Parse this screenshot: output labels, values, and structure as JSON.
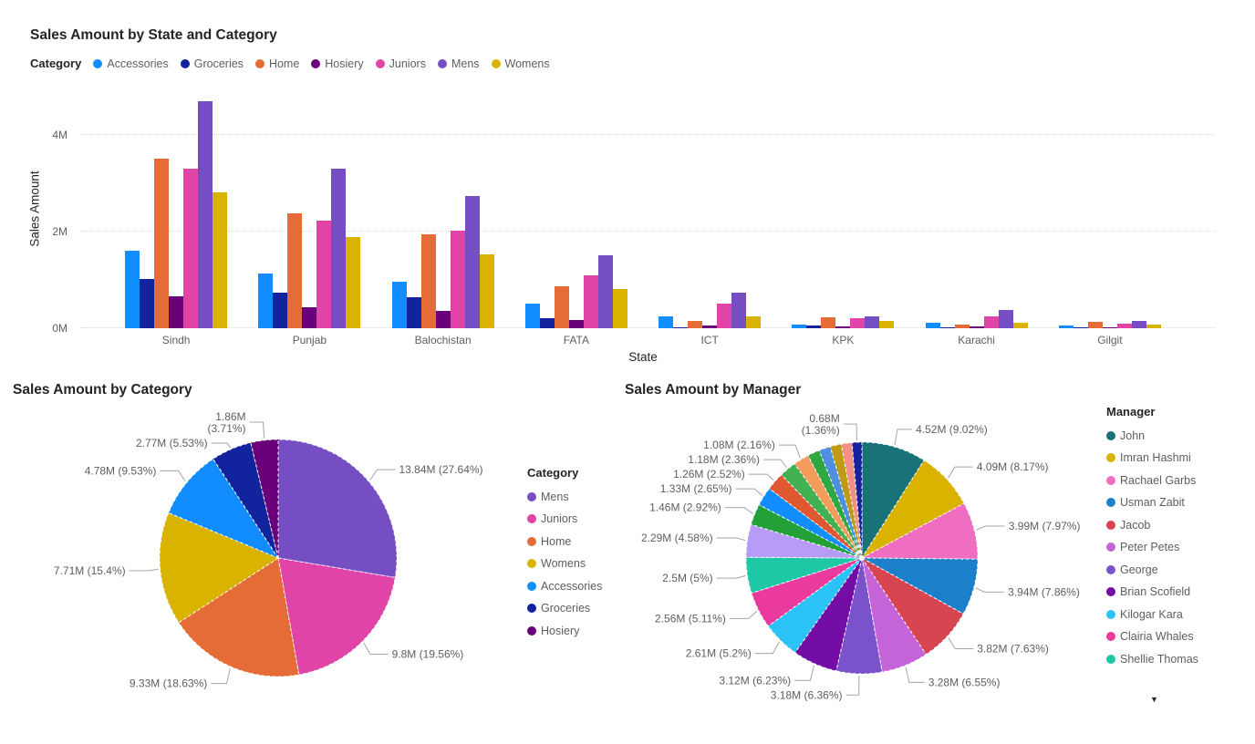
{
  "icons": {
    "legend_scroll_down": "▼"
  },
  "chart_data": [
    {
      "type": "bar",
      "title": "Sales Amount by State and Category",
      "legend_title": "Category",
      "xlabel": "State",
      "ylabel": "Sales Amount",
      "values_unit": "M",
      "ylim": [
        0,
        4.9
      ],
      "grid": "dotted-horizontal",
      "legend_position": "top",
      "yticks": [
        {
          "label": "0M",
          "value": 0
        },
        {
          "label": "2M",
          "value": 2
        },
        {
          "label": "4M",
          "value": 4
        }
      ],
      "categories": [
        "Sindh",
        "Punjab",
        "Balochistan",
        "FATA",
        "ICT",
        "KPK",
        "Karachi",
        "Gilgit"
      ],
      "series": [
        {
          "name": "Accessories",
          "color": "#118DFF",
          "values": [
            1.61,
            1.13,
            0.97,
            0.5,
            0.25,
            0.08,
            0.11,
            0.06
          ]
        },
        {
          "name": "Groceries",
          "color": "#12239E",
          "values": [
            1.01,
            0.74,
            0.64,
            0.21,
            0.02,
            0.05,
            0.02,
            0.02
          ]
        },
        {
          "name": "Home",
          "color": "#E66C37",
          "values": [
            3.51,
            2.37,
            1.94,
            0.86,
            0.15,
            0.22,
            0.07,
            0.13
          ]
        },
        {
          "name": "Hosiery",
          "color": "#6B007B",
          "values": [
            0.66,
            0.43,
            0.35,
            0.17,
            0.06,
            0.03,
            0.03,
            0.02
          ]
        },
        {
          "name": "Juniors",
          "color": "#E044A7",
          "values": [
            3.29,
            2.23,
            2.02,
            1.09,
            0.51,
            0.2,
            0.24,
            0.1
          ]
        },
        {
          "name": "Mens",
          "color": "#744EC2",
          "values": [
            4.69,
            3.29,
            2.74,
            1.51,
            0.73,
            0.25,
            0.37,
            0.15
          ]
        },
        {
          "name": "Womens",
          "color": "#D9B300",
          "values": [
            2.8,
            1.88,
            1.53,
            0.82,
            0.24,
            0.16,
            0.11,
            0.07
          ]
        }
      ]
    },
    {
      "type": "pie",
      "title": "Sales Amount by Category",
      "legend_title": "Category",
      "legend_position": "right",
      "slices": [
        {
          "name": "Mens",
          "color": "#744EC2",
          "value": "13.84M",
          "pct": 27.64,
          "label": "13.84M (27.64%)"
        },
        {
          "name": "Juniors",
          "color": "#E044A7",
          "value": "9.8M",
          "pct": 19.56,
          "label": "9.8M (19.56%)"
        },
        {
          "name": "Home",
          "color": "#E66C37",
          "value": "9.33M",
          "pct": 18.63,
          "label": "9.33M (18.63%)"
        },
        {
          "name": "Womens",
          "color": "#D9B300",
          "value": "7.71M",
          "pct": 15.4,
          "label": "7.71M (15.4%)"
        },
        {
          "name": "Accessories",
          "color": "#118DFF",
          "value": "4.78M",
          "pct": 9.53,
          "label": "4.78M (9.53%)"
        },
        {
          "name": "Groceries",
          "color": "#12239E",
          "value": "2.77M",
          "pct": 5.53,
          "label": "2.77M (5.53%)"
        },
        {
          "name": "Hosiery",
          "color": "#6B007B",
          "value": "1.86M",
          "pct": 3.71,
          "label": "1.86M (3.71%)",
          "two_line": true
        }
      ]
    },
    {
      "type": "pie",
      "title": "Sales Amount by Manager",
      "legend_title": "Manager",
      "legend_position": "right",
      "legend_overflow": true,
      "slices": [
        {
          "name": "John",
          "color": "#197278",
          "value": "4.52M",
          "pct": 9.02,
          "label": "4.52M (9.02%)"
        },
        {
          "name": "Imran Hashmi",
          "color": "#D9B300",
          "value": "4.09M",
          "pct": 8.17,
          "label": "4.09M (8.17%)"
        },
        {
          "name": "Rachael Garbs",
          "color": "#F06EC1",
          "value": "3.99M",
          "pct": 7.97,
          "label": "3.99M (7.97%)"
        },
        {
          "name": "Usman Zabit",
          "color": "#1B80C9",
          "value": "3.94M",
          "pct": 7.86,
          "label": "3.94M (7.86%)"
        },
        {
          "name": "Jacob",
          "color": "#D64550",
          "value": "3.82M",
          "pct": 7.63,
          "label": "3.82M (7.63%)"
        },
        {
          "name": "Peter Petes",
          "color": "#C564D9",
          "value": "3.28M",
          "pct": 6.55,
          "label": "3.28M (6.55%)"
        },
        {
          "name": "George",
          "color": "#7A53CC",
          "value": "3.18M",
          "pct": 6.36,
          "label": "3.18M (6.36%)"
        },
        {
          "name": "Brian Scofield",
          "color": "#730DA6",
          "value": "3.12M",
          "pct": 6.23,
          "label": "3.12M (6.23%)"
        },
        {
          "name": "Kilogar Kara",
          "color": "#2BC2F5",
          "value": "2.61M",
          "pct": 5.2,
          "label": "2.61M (5.2%)"
        },
        {
          "name": "Clairia Whales",
          "color": "#EB3A9D",
          "value": "2.56M",
          "pct": 5.11,
          "label": "2.56M (5.11%)"
        },
        {
          "name": "Shellie Thomas",
          "color": "#1EC8A6",
          "value": "2.5M",
          "pct": 5.0,
          "label": "2.5M (5%)"
        },
        {
          "name": "",
          "color": "#B69CF7",
          "value": "2.29M",
          "pct": 4.58,
          "label": "2.29M (4.58%)"
        },
        {
          "name": "",
          "color": "#23A038",
          "value": "1.46M",
          "pct": 2.92,
          "label": "1.46M (2.92%)"
        },
        {
          "name": "",
          "color": "#118DFF",
          "value": "1.33M",
          "pct": 2.65,
          "label": "1.33M (2.65%)"
        },
        {
          "name": "",
          "color": "#E0582F",
          "value": "1.26M",
          "pct": 2.52,
          "label": "1.26M (2.52%)"
        },
        {
          "name": "",
          "color": "#41B151",
          "value": "1.18M",
          "pct": 2.36,
          "label": "1.18M (2.36%)"
        },
        {
          "name": "",
          "color": "#F59B5C",
          "value": "1.08M",
          "pct": 2.16,
          "label": "1.08M (2.16%)"
        },
        {
          "name": "",
          "color": "#2FA844",
          "value": "",
          "pct": 1.7,
          "label": null
        },
        {
          "name": "",
          "color": "#4E8FE0",
          "value": "",
          "pct": 1.6,
          "label": null
        },
        {
          "name": "",
          "color": "#BD9B16",
          "value": "",
          "pct": 1.56,
          "label": null
        },
        {
          "name": "",
          "color": "#F28F87",
          "value": "",
          "pct": 1.49,
          "label": null
        },
        {
          "name": "",
          "color": "#16239D",
          "value": "0.68M",
          "pct": 1.36,
          "label": "0.68M (1.36%)",
          "two_line": true
        }
      ]
    }
  ]
}
